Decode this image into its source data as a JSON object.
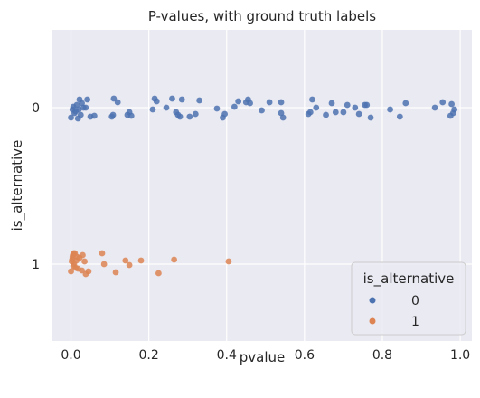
{
  "chart_data": {
    "type": "scatter",
    "title": "P-values, with ground truth labels",
    "xlabel": "pvalue",
    "ylabel": "is_alternative",
    "xlim": [
      -0.05,
      1.03
    ],
    "x_ticks": [
      "0.0",
      "0.2",
      "0.4",
      "0.6",
      "0.8",
      "1.0"
    ],
    "x_tick_values": [
      0.0,
      0.2,
      0.4,
      0.6,
      0.8,
      1.0
    ],
    "y_categories": [
      "0",
      "1"
    ],
    "grid": true,
    "legend": {
      "title": "is_alternative",
      "placement": "lower-right",
      "entries": [
        "0",
        "1"
      ]
    },
    "colors": {
      "0": "#4c72b0",
      "1": "#dd8452"
    },
    "series": [
      {
        "name": "0",
        "points": [
          {
            "x": 0.0,
            "jitter": 0.11
          },
          {
            "x": 0.004,
            "jitter": 0.02
          },
          {
            "x": 0.006,
            "jitter": -0.01
          },
          {
            "x": 0.009,
            "jitter": 0.06
          },
          {
            "x": 0.012,
            "jitter": 0.04
          },
          {
            "x": 0.015,
            "jitter": -0.03
          },
          {
            "x": 0.018,
            "jitter": 0.12
          },
          {
            "x": 0.02,
            "jitter": 0.02
          },
          {
            "x": 0.022,
            "jitter": -0.09
          },
          {
            "x": 0.025,
            "jitter": 0.08
          },
          {
            "x": 0.028,
            "jitter": -0.05
          },
          {
            "x": 0.032,
            "jitter": 0.0
          },
          {
            "x": 0.038,
            "jitter": 0.0
          },
          {
            "x": 0.042,
            "jitter": -0.09
          },
          {
            "x": 0.05,
            "jitter": 0.1
          },
          {
            "x": 0.06,
            "jitter": 0.09
          },
          {
            "x": 0.105,
            "jitter": 0.1
          },
          {
            "x": 0.108,
            "jitter": 0.08
          },
          {
            "x": 0.11,
            "jitter": -0.1
          },
          {
            "x": 0.12,
            "jitter": -0.06
          },
          {
            "x": 0.145,
            "jitter": 0.08
          },
          {
            "x": 0.15,
            "jitter": 0.05
          },
          {
            "x": 0.155,
            "jitter": 0.09
          },
          {
            "x": 0.21,
            "jitter": 0.02
          },
          {
            "x": 0.215,
            "jitter": -0.1
          },
          {
            "x": 0.22,
            "jitter": -0.07
          },
          {
            "x": 0.245,
            "jitter": 0.0
          },
          {
            "x": 0.26,
            "jitter": -0.1
          },
          {
            "x": 0.27,
            "jitter": 0.05
          },
          {
            "x": 0.275,
            "jitter": 0.08
          },
          {
            "x": 0.28,
            "jitter": 0.1
          },
          {
            "x": 0.285,
            "jitter": -0.09
          },
          {
            "x": 0.305,
            "jitter": 0.1
          },
          {
            "x": 0.32,
            "jitter": 0.07
          },
          {
            "x": 0.33,
            "jitter": -0.08
          },
          {
            "x": 0.375,
            "jitter": 0.01
          },
          {
            "x": 0.39,
            "jitter": 0.11
          },
          {
            "x": 0.395,
            "jitter": 0.07
          },
          {
            "x": 0.42,
            "jitter": -0.01
          },
          {
            "x": 0.43,
            "jitter": -0.07
          },
          {
            "x": 0.45,
            "jitter": -0.06
          },
          {
            "x": 0.455,
            "jitter": -0.09
          },
          {
            "x": 0.46,
            "jitter": -0.05
          },
          {
            "x": 0.49,
            "jitter": 0.03
          },
          {
            "x": 0.51,
            "jitter": -0.06
          },
          {
            "x": 0.54,
            "jitter": 0.06
          },
          {
            "x": 0.545,
            "jitter": 0.11
          },
          {
            "x": 0.54,
            "jitter": -0.06
          },
          {
            "x": 0.61,
            "jitter": 0.07
          },
          {
            "x": 0.615,
            "jitter": 0.05
          },
          {
            "x": 0.62,
            "jitter": -0.09
          },
          {
            "x": 0.63,
            "jitter": 0.0
          },
          {
            "x": 0.655,
            "jitter": 0.08
          },
          {
            "x": 0.67,
            "jitter": -0.05
          },
          {
            "x": 0.68,
            "jitter": 0.05
          },
          {
            "x": 0.7,
            "jitter": 0.05
          },
          {
            "x": 0.71,
            "jitter": -0.03
          },
          {
            "x": 0.73,
            "jitter": 0.0
          },
          {
            "x": 0.74,
            "jitter": 0.07
          },
          {
            "x": 0.755,
            "jitter": -0.03
          },
          {
            "x": 0.76,
            "jitter": -0.03
          },
          {
            "x": 0.77,
            "jitter": 0.11
          },
          {
            "x": 0.82,
            "jitter": 0.02
          },
          {
            "x": 0.845,
            "jitter": 0.1
          },
          {
            "x": 0.86,
            "jitter": -0.05
          },
          {
            "x": 0.935,
            "jitter": 0.0
          },
          {
            "x": 0.955,
            "jitter": -0.06
          },
          {
            "x": 0.975,
            "jitter": 0.09
          },
          {
            "x": 0.978,
            "jitter": -0.04
          },
          {
            "x": 0.982,
            "jitter": 0.06
          },
          {
            "x": 0.985,
            "jitter": 0.02
          }
        ]
      },
      {
        "name": "1",
        "points": [
          {
            "x": 0.0,
            "jitter": 0.08
          },
          {
            "x": 0.002,
            "jitter": -0.03
          },
          {
            "x": 0.003,
            "jitter": -0.05
          },
          {
            "x": 0.004,
            "jitter": -0.08
          },
          {
            "x": 0.005,
            "jitter": -0.1
          },
          {
            "x": 0.006,
            "jitter": 0.02
          },
          {
            "x": 0.007,
            "jitter": -0.12
          },
          {
            "x": 0.008,
            "jitter": 0.0
          },
          {
            "x": 0.01,
            "jitter": -0.12
          },
          {
            "x": 0.012,
            "jitter": 0.04
          },
          {
            "x": 0.014,
            "jitter": -0.04
          },
          {
            "x": 0.016,
            "jitter": -0.08
          },
          {
            "x": 0.018,
            "jitter": 0.05
          },
          {
            "x": 0.022,
            "jitter": -0.07
          },
          {
            "x": 0.028,
            "jitter": 0.07
          },
          {
            "x": 0.03,
            "jitter": -0.1
          },
          {
            "x": 0.035,
            "jitter": -0.03
          },
          {
            "x": 0.038,
            "jitter": 0.11
          },
          {
            "x": 0.045,
            "jitter": 0.08
          },
          {
            "x": 0.08,
            "jitter": -0.12
          },
          {
            "x": 0.085,
            "jitter": 0.0
          },
          {
            "x": 0.115,
            "jitter": 0.09
          },
          {
            "x": 0.14,
            "jitter": -0.04
          },
          {
            "x": 0.15,
            "jitter": 0.01
          },
          {
            "x": 0.18,
            "jitter": -0.04
          },
          {
            "x": 0.225,
            "jitter": 0.1
          },
          {
            "x": 0.265,
            "jitter": -0.05
          },
          {
            "x": 0.405,
            "jitter": -0.03
          }
        ]
      }
    ]
  }
}
